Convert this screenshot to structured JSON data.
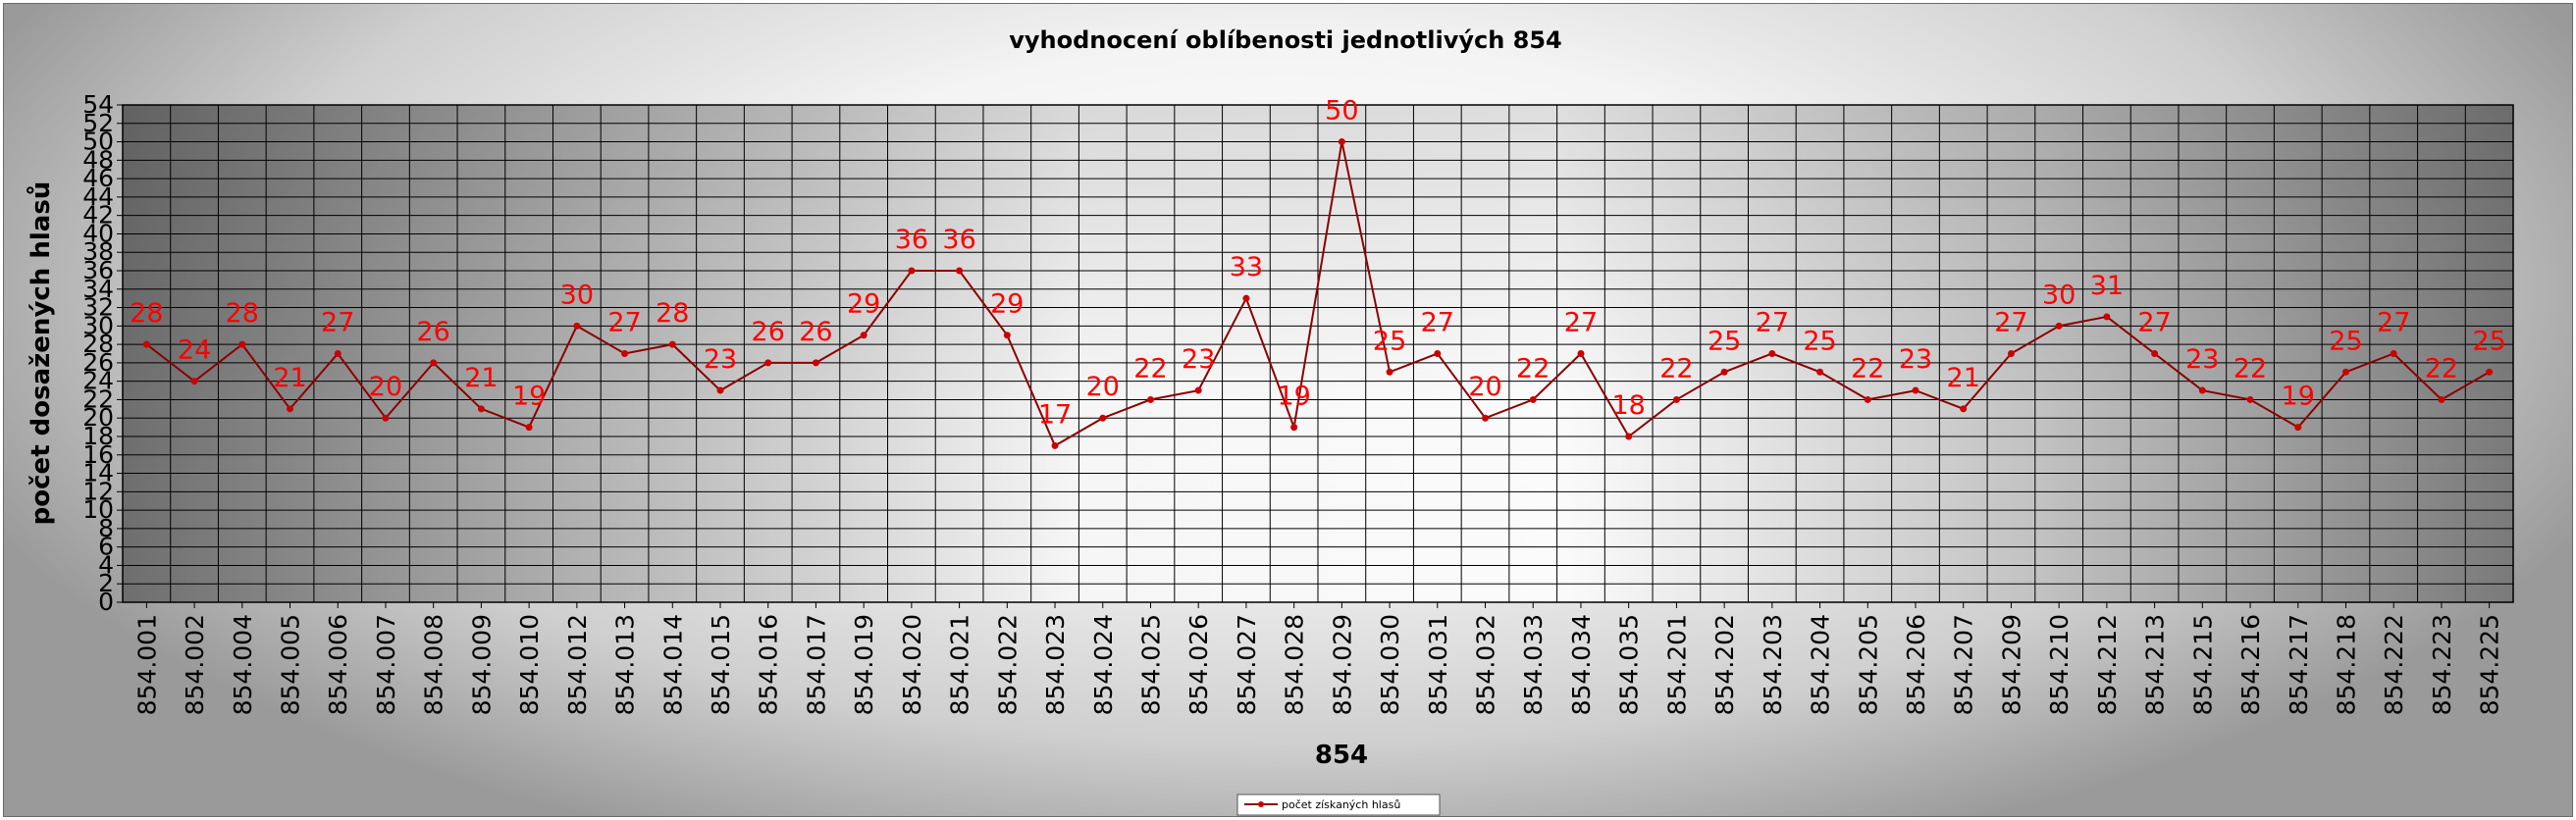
{
  "chart_data": {
    "type": "line",
    "title": "vyhodnocení oblíbenosti jednotlivých 854",
    "xlabel": "854",
    "ylabel": "počet  dosažených  hlasů",
    "ylim": [
      0,
      54
    ],
    "ytick_step": 2,
    "grid": true,
    "legend_position": "bottom",
    "series_color": "#8b0000",
    "label_color": "#ff0000",
    "categories": [
      "854.001",
      "854.002",
      "854.004",
      "854.005",
      "854.006",
      "854.007",
      "854.008",
      "854.009",
      "854.010",
      "854.012",
      "854.013",
      "854.014",
      "854.015",
      "854.016",
      "854.017",
      "854.019",
      "854.020",
      "854.021",
      "854.022",
      "854.023",
      "854.024",
      "854.025",
      "854.026",
      "854.027",
      "854.028",
      "854.029",
      "854.030",
      "854.031",
      "854.032",
      "854.033",
      "854.034",
      "854.035",
      "854.201",
      "854.202",
      "854.203",
      "854.204",
      "854.205",
      "854.206",
      "854.207",
      "854.209",
      "854.210",
      "854.212",
      "854.213",
      "854.215",
      "854.216",
      "854.217",
      "854.218",
      "854.222",
      "854.223",
      "854.225"
    ],
    "series": [
      {
        "name": "počet získaných hlasů",
        "values": [
          28,
          24,
          28,
          21,
          27,
          20,
          26,
          21,
          19,
          30,
          27,
          28,
          23,
          26,
          26,
          29,
          36,
          36,
          29,
          17,
          20,
          22,
          23,
          33,
          19,
          50,
          25,
          27,
          20,
          22,
          27,
          18,
          22,
          25,
          27,
          25,
          22,
          23,
          21,
          27,
          30,
          31,
          27,
          23,
          22,
          19,
          25,
          27,
          22,
          25
        ]
      }
    ]
  }
}
